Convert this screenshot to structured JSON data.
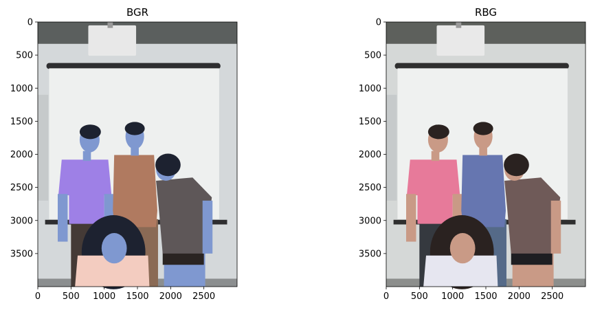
{
  "chart_data": [
    {
      "type": "image",
      "title": "BGR",
      "xlim": [
        0,
        3000
      ],
      "ylim": [
        4000,
        0
      ],
      "xticks": [
        0,
        500,
        1000,
        1500,
        2000,
        2500
      ],
      "xticklabels": [
        "0",
        "500",
        "1000",
        "1500",
        "2000",
        "2500"
      ],
      "yticks": [
        0,
        500,
        1000,
        1500,
        2000,
        2500,
        3000,
        3500
      ],
      "yticklabels": [
        "0",
        "500",
        "1000",
        "1500",
        "2000",
        "2500",
        "3000",
        "3500"
      ],
      "palette": {
        "wall": "#d4d8da",
        "ceiling": "#5b5f5e",
        "screen": "#eef0ef",
        "bar": "#2e2e30",
        "projector": "#e8e8e8",
        "floor": "#8b8e8f",
        "skin": "#7f98d0",
        "hair": "#1d2230",
        "p1_shirt": "#9e80e6",
        "p1_pants": "#443a36",
        "p2_shirt": "#b07a60",
        "p2_pants": "#8a6a55",
        "p3_shirt": "#5e5758",
        "p3_shorts": "#2a2422",
        "p4_shirt": "#f3ccc0"
      }
    },
    {
      "type": "image",
      "title": "RBG",
      "xlim": [
        0,
        3000
      ],
      "ylim": [
        4000,
        0
      ],
      "xticks": [
        0,
        500,
        1000,
        1500,
        2000,
        2500
      ],
      "xticklabels": [
        "0",
        "500",
        "1000",
        "1500",
        "2000",
        "2500"
      ],
      "yticks": [
        0,
        500,
        1000,
        1500,
        2000,
        2500,
        3000,
        3500
      ],
      "yticklabels": [
        "0",
        "500",
        "1000",
        "1500",
        "2000",
        "2500",
        "3000",
        "3500"
      ],
      "palette": {
        "wall": "#d5d8d7",
        "ceiling": "#5d605c",
        "screen": "#eff1f0",
        "bar": "#2f2f2f",
        "projector": "#e9e9e9",
        "floor": "#8c8e8c",
        "skin": "#c99a86",
        "hair": "#2a2220",
        "p1_shirt": "#e77a9a",
        "p1_pants": "#35393f",
        "p2_shirt": "#6676b0",
        "p2_pants": "#556a88",
        "p3_shirt": "#6f5a58",
        "p3_shorts": "#1e1e22",
        "p4_shirt": "#e6e6f0"
      }
    }
  ]
}
